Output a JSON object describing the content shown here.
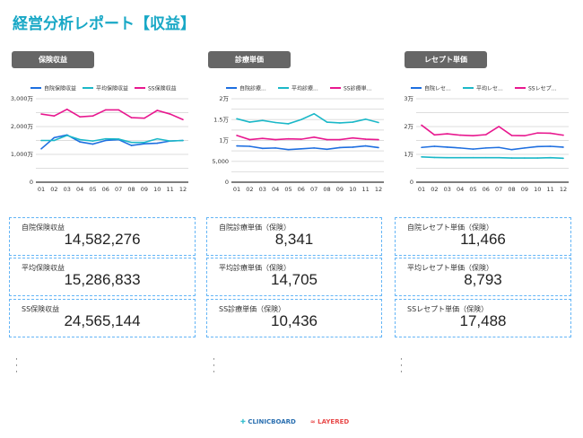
{
  "title": "経営分析レポート【収益】",
  "colors": {
    "self": "#1e6fe0",
    "avg": "#1bb8c8",
    "ss": "#e8188f",
    "title": "#19a8c6"
  },
  "sections": [
    {
      "header": "保険収益",
      "cards": [
        {
          "label": "自院保険収益",
          "value": "14,582,276"
        },
        {
          "label": "平均保険収益",
          "value": "15,286,833"
        },
        {
          "label": "SS保険収益",
          "value": "24,565,144"
        }
      ]
    },
    {
      "header": "診療単価",
      "cards": [
        {
          "label": "自院診療単価（保険）",
          "value": "8,341"
        },
        {
          "label": "平均診療単価（保険）",
          "value": "14,705"
        },
        {
          "label": "SS診療単価（保険）",
          "value": "10,436"
        }
      ]
    },
    {
      "header": "レセプト単価",
      "cards": [
        {
          "label": "自院レセプト単価（保険）",
          "value": "11,466"
        },
        {
          "label": "平均レセプト単価（保険）",
          "value": "8,793"
        },
        {
          "label": "SSレセプト単価（保険）",
          "value": "17,488"
        }
      ]
    }
  ],
  "chart_data": [
    {
      "type": "line",
      "categories": [
        "01",
        "02",
        "03",
        "04",
        "05",
        "06",
        "07",
        "08",
        "09",
        "10",
        "11",
        "12"
      ],
      "ylim": [
        0,
        3000
      ],
      "yticks": [
        "0",
        "1,000万",
        "2,000万",
        "3,000万"
      ],
      "tickvals": [
        0,
        1000,
        2000,
        3000
      ],
      "grid": true,
      "legend": "top",
      "series": [
        {
          "name": "自院保険収益",
          "values": [
            1200,
            1600,
            1700,
            1450,
            1370,
            1500,
            1530,
            1320,
            1380,
            1400,
            1480,
            1500
          ]
        },
        {
          "name": "平均保険収益",
          "values": [
            1500,
            1500,
            1680,
            1530,
            1480,
            1560,
            1550,
            1430,
            1430,
            1560,
            1480,
            1500
          ]
        },
        {
          "name": "SS保険収益",
          "values": [
            2450,
            2380,
            2620,
            2350,
            2380,
            2600,
            2600,
            2320,
            2300,
            2580,
            2450,
            2250
          ]
        }
      ]
    },
    {
      "type": "line",
      "categories": [
        "01",
        "02",
        "03",
        "04",
        "05",
        "06",
        "07",
        "08",
        "09",
        "10",
        "11",
        "12"
      ],
      "ylim": [
        0,
        20000
      ],
      "yticks": [
        "0",
        "5,000",
        "1万",
        "1.5万",
        "2万"
      ],
      "tickvals": [
        0,
        5000,
        10000,
        15000,
        20000
      ],
      "grid": true,
      "legend": "top",
      "series": [
        {
          "name": "自院診療...",
          "values": [
            8700,
            8600,
            8100,
            8200,
            7800,
            8000,
            8200,
            7900,
            8300,
            8400,
            8700,
            8300
          ]
        },
        {
          "name": "平均診療...",
          "values": [
            15200,
            14400,
            14800,
            14300,
            14000,
            15000,
            16400,
            14400,
            14200,
            14400,
            15100,
            14300
          ]
        },
        {
          "name": "SS診療単...",
          "values": [
            11200,
            10200,
            10500,
            10200,
            10400,
            10300,
            10800,
            10200,
            10200,
            10600,
            10300,
            10200
          ]
        }
      ]
    },
    {
      "type": "line",
      "categories": [
        "01",
        "02",
        "03",
        "04",
        "05",
        "06",
        "07",
        "08",
        "09",
        "10",
        "11",
        "12"
      ],
      "ylim": [
        0,
        30000
      ],
      "yticks": [
        "0",
        "1万",
        "2万",
        "3万"
      ],
      "tickvals": [
        0,
        10000,
        20000,
        30000
      ],
      "grid": true,
      "legend": "top",
      "series": [
        {
          "name": "自院レセ...",
          "values": [
            12500,
            12900,
            12600,
            12300,
            11900,
            12300,
            12500,
            11700,
            12300,
            12800,
            12900,
            12600
          ]
        },
        {
          "name": "平均レセ...",
          "values": [
            9100,
            8900,
            8800,
            8800,
            8800,
            8800,
            8800,
            8700,
            8700,
            8700,
            8800,
            8600
          ]
        },
        {
          "name": "SSレセプ...",
          "values": [
            20500,
            17000,
            17400,
            16900,
            16700,
            17100,
            20000,
            16800,
            16700,
            17700,
            17600,
            16900
          ]
        }
      ]
    }
  ],
  "footer": {
    "brand1": "CLINICBOARD",
    "brand2": "LAYERED"
  }
}
